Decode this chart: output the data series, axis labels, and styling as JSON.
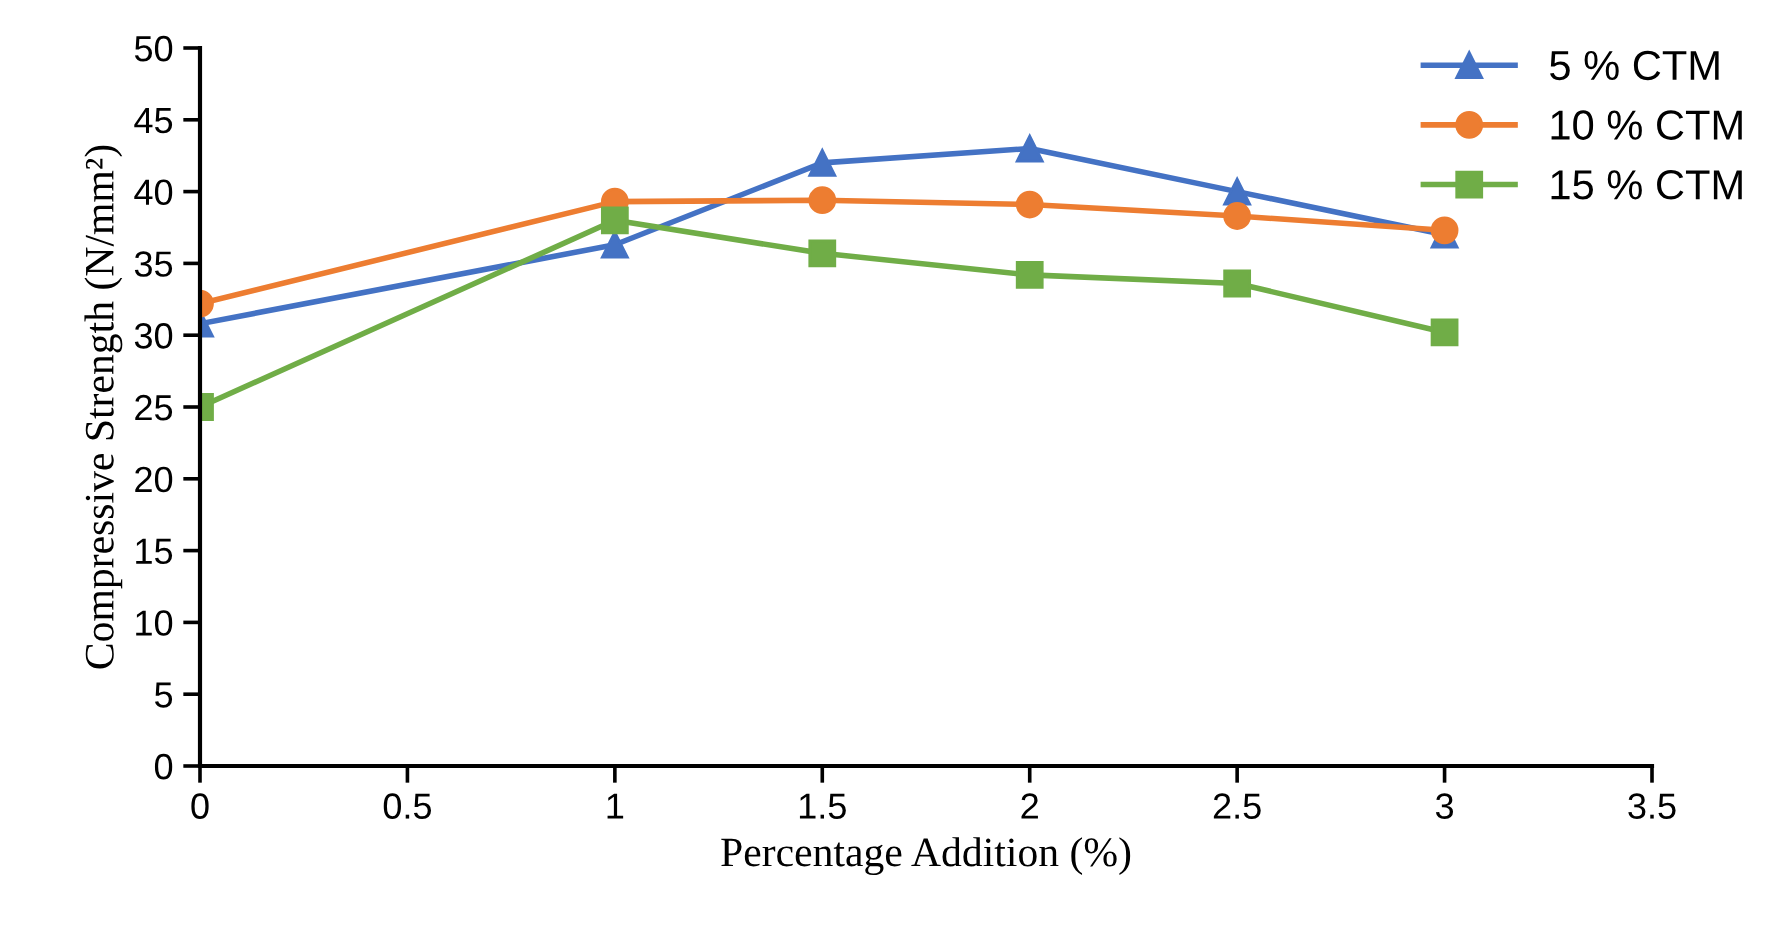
{
  "chart_data": {
    "type": "line",
    "xlabel": "Percentage Addition (%)",
    "ylabel": "Compressive Strength (N/mm²)",
    "x": [
      0,
      1,
      1.5,
      2,
      2.5,
      3
    ],
    "series": [
      {
        "name": "5 % CTM",
        "color": "#4472c4",
        "marker": "triangle",
        "values": [
          30.8,
          36.3,
          42,
          43,
          40,
          37
        ]
      },
      {
        "name": "10 % CTM",
        "color": "#ed7d31",
        "marker": "circle",
        "values": [
          32.2,
          39.3,
          39.4,
          39.1,
          38.3,
          37.3
        ]
      },
      {
        "name": "15 % CTM",
        "color": "#70ad47",
        "marker": "square",
        "values": [
          25,
          38,
          35.7,
          34.2,
          33.6,
          30.2
        ]
      }
    ],
    "xlim": [
      0,
      3.5
    ],
    "xticks": [
      0,
      0.5,
      1,
      1.5,
      2,
      2.5,
      3,
      3.5
    ],
    "ylim": [
      0,
      50
    ],
    "yticks": [
      0,
      5,
      10,
      15,
      20,
      25,
      30,
      35,
      40,
      45,
      50
    ],
    "grid": false,
    "legend": "top right",
    "line_style": "solid"
  }
}
